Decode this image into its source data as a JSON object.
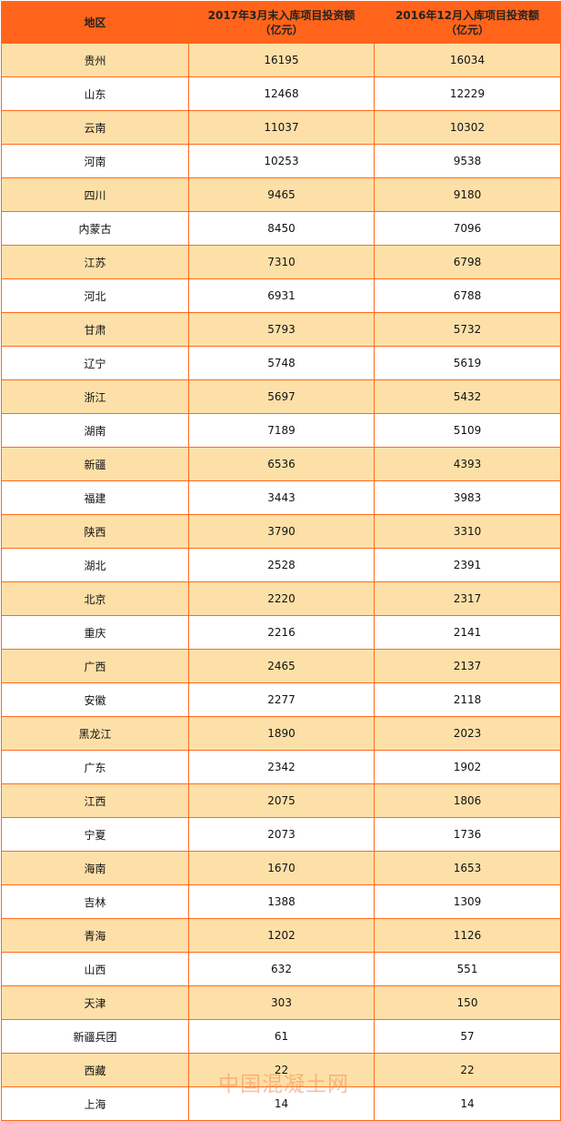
{
  "table": {
    "headers": [
      "地区",
      "2017年3月末入库项目投资额（亿元）",
      "2016年12月入库项目投资额（亿元）"
    ],
    "header_lines": [
      [
        "地区"
      ],
      [
        "2017年3月末入库项目投资额",
        "（亿元）"
      ],
      [
        "2016年12月入库项目投资额",
        "（亿元）"
      ]
    ],
    "rows": [
      [
        "贵州",
        "16195",
        "16034"
      ],
      [
        "山东",
        "12468",
        "12229"
      ],
      [
        "云南",
        "11037",
        "10302"
      ],
      [
        "河南",
        "10253",
        "9538"
      ],
      [
        "四川",
        "9465",
        "9180"
      ],
      [
        "内蒙古",
        "8450",
        "7096"
      ],
      [
        "江苏",
        "7310",
        "6798"
      ],
      [
        "河北",
        "6931",
        "6788"
      ],
      [
        "甘肃",
        "5793",
        "5732"
      ],
      [
        "辽宁",
        "5748",
        "5619"
      ],
      [
        "浙江",
        "5697",
        "5432"
      ],
      [
        "湖南",
        "7189",
        "5109"
      ],
      [
        "新疆",
        "6536",
        "4393"
      ],
      [
        "福建",
        "3443",
        "3983"
      ],
      [
        "陕西",
        "3790",
        "3310"
      ],
      [
        "湖北",
        "2528",
        "2391"
      ],
      [
        "北京",
        "2220",
        "2317"
      ],
      [
        "重庆",
        "2216",
        "2141"
      ],
      [
        "广西",
        "2465",
        "2137"
      ],
      [
        "安徽",
        "2277",
        "2118"
      ],
      [
        "黑龙江",
        "1890",
        "2023"
      ],
      [
        "广东",
        "2342",
        "1902"
      ],
      [
        "江西",
        "2075",
        "1806"
      ],
      [
        "宁夏",
        "2073",
        "1736"
      ],
      [
        "海南",
        "1670",
        "1653"
      ],
      [
        "吉林",
        "1388",
        "1309"
      ],
      [
        "青海",
        "1202",
        "1126"
      ],
      [
        "山西",
        "632",
        "551"
      ],
      [
        "天津",
        "303",
        "150"
      ],
      [
        "新疆兵团",
        "61",
        "57"
      ],
      [
        "西藏",
        "22",
        "22"
      ],
      [
        "上海",
        "14",
        "14"
      ]
    ]
  },
  "watermark": "中国混凝土网",
  "colors": {
    "header_bg": "#ff641a",
    "border": "#ff6a1f",
    "alt_row": "#fde0a8",
    "row": "#ffffff"
  }
}
